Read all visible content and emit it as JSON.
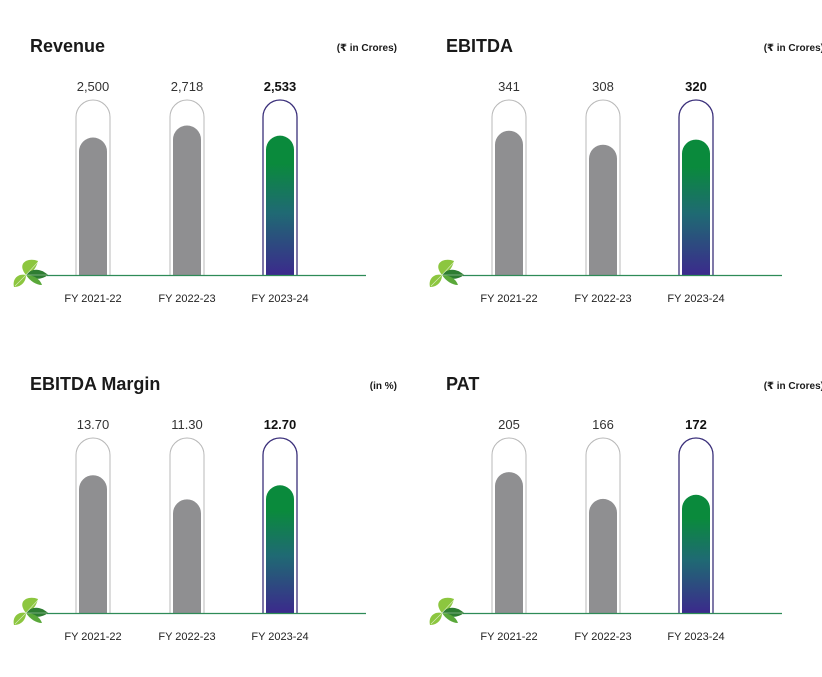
{
  "chart_data": [
    {
      "type": "bar",
      "title": "Revenue",
      "unit": "(₹ in Crores)",
      "categories": [
        "FY 2021-22",
        "FY 2022-23",
        "FY 2023-24"
      ],
      "values": [
        2500,
        2718,
        2533
      ],
      "value_labels": [
        "2,500",
        "2,718",
        "2,533"
      ],
      "highlight_index": 2,
      "ylim": [
        0,
        3200
      ]
    },
    {
      "type": "bar",
      "title": "EBITDA",
      "unit": "(₹ in Crores)",
      "categories": [
        "FY 2021-22",
        "FY 2022-23",
        "FY 2023-24"
      ],
      "values": [
        341,
        308,
        320
      ],
      "value_labels": [
        "341",
        "308",
        "320"
      ],
      "highlight_index": 2,
      "ylim": [
        0,
        416
      ]
    },
    {
      "type": "bar",
      "title": "EBITDA Margin",
      "unit": "(in %)",
      "categories": [
        "FY 2021-22",
        "FY 2022-23",
        "FY 2023-24"
      ],
      "values": [
        13.7,
        11.3,
        12.7
      ],
      "value_labels": [
        "13.70",
        "11.30",
        "12.70"
      ],
      "highlight_index": 2,
      "ylim": [
        0,
        17.5
      ]
    },
    {
      "type": "bar",
      "title": "PAT",
      "unit": "(₹ in Crores)",
      "categories": [
        "FY 2021-22",
        "FY 2022-23",
        "FY 2023-24"
      ],
      "values": [
        205,
        166,
        172
      ],
      "value_labels": [
        "205",
        "166",
        "172"
      ],
      "highlight_index": 2,
      "ylim": [
        0,
        256
      ]
    }
  ],
  "colors": {
    "bar_grey": "#8f8f91",
    "gradient_top": "#0a8a3c",
    "gradient_mid": "#1f6a73",
    "gradient_bottom": "#3b2a8c",
    "outline_grey": "#b8b8b8",
    "outline_current": "#3a2f7a",
    "baseline": "#2e8b57",
    "leaf_light": "#8cc63f",
    "leaf_dark": "#2e7d32"
  }
}
